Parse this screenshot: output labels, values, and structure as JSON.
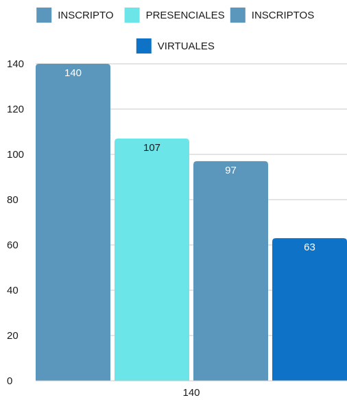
{
  "chart_data": {
    "type": "bar",
    "categories": [
      "140"
    ],
    "series": [
      {
        "name": "INSCRIPTO",
        "values": [
          140
        ],
        "color": "#5b97bd",
        "label_color": "#ffffff"
      },
      {
        "name": "PRESENCIALES",
        "values": [
          107
        ],
        "color": "#6ce5e8",
        "label_color": "#1a1a1a"
      },
      {
        "name": "INSCRIPTOS",
        "values": [
          97
        ],
        "color": "#5b97bd",
        "label_color": "#ffffff"
      },
      {
        "name": "VIRTUALES",
        "values": [
          63
        ],
        "color": "#0e72c6",
        "label_color": "#ffffff"
      }
    ],
    "ylim": [
      0,
      140
    ],
    "yticks": [
      0,
      20,
      40,
      60,
      80,
      100,
      120,
      140
    ],
    "grid": true,
    "legend_position": "top",
    "title": "",
    "xlabel": "",
    "ylabel": ""
  }
}
